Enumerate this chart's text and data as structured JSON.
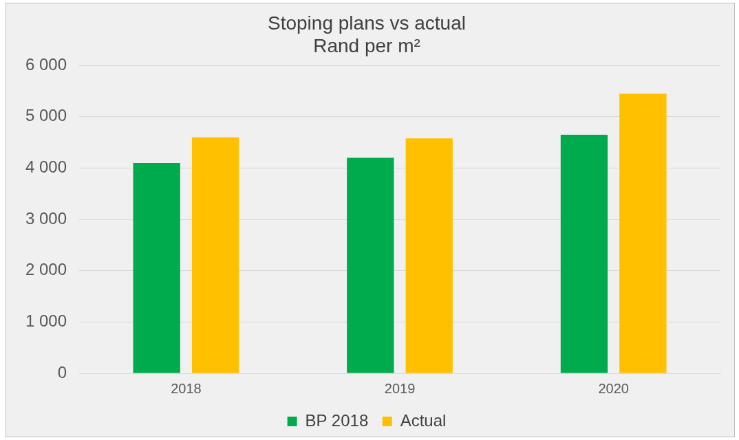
{
  "chart_data": {
    "type": "bar",
    "title": "Stoping plans vs actual",
    "subtitle": "Rand per m²",
    "categories": [
      "2018",
      "2019",
      "2020"
    ],
    "series": [
      {
        "name": "BP 2018",
        "color": "#00ab4e",
        "values": [
          4100,
          4200,
          4650
        ]
      },
      {
        "name": "Actual",
        "color": "#ffc000",
        "values": [
          4600,
          4580,
          5450
        ]
      }
    ],
    "ylim": [
      0,
      6000
    ],
    "yticks": [
      {
        "value": 0,
        "label": "0"
      },
      {
        "value": 1000,
        "label": "1 000"
      },
      {
        "value": 2000,
        "label": "2 000"
      },
      {
        "value": 3000,
        "label": "3 000"
      },
      {
        "value": 4000,
        "label": "4 000"
      },
      {
        "value": 5000,
        "label": "5 000"
      },
      {
        "value": 6000,
        "label": "6 000"
      }
    ],
    "grid": "y",
    "legend": "bottom"
  }
}
